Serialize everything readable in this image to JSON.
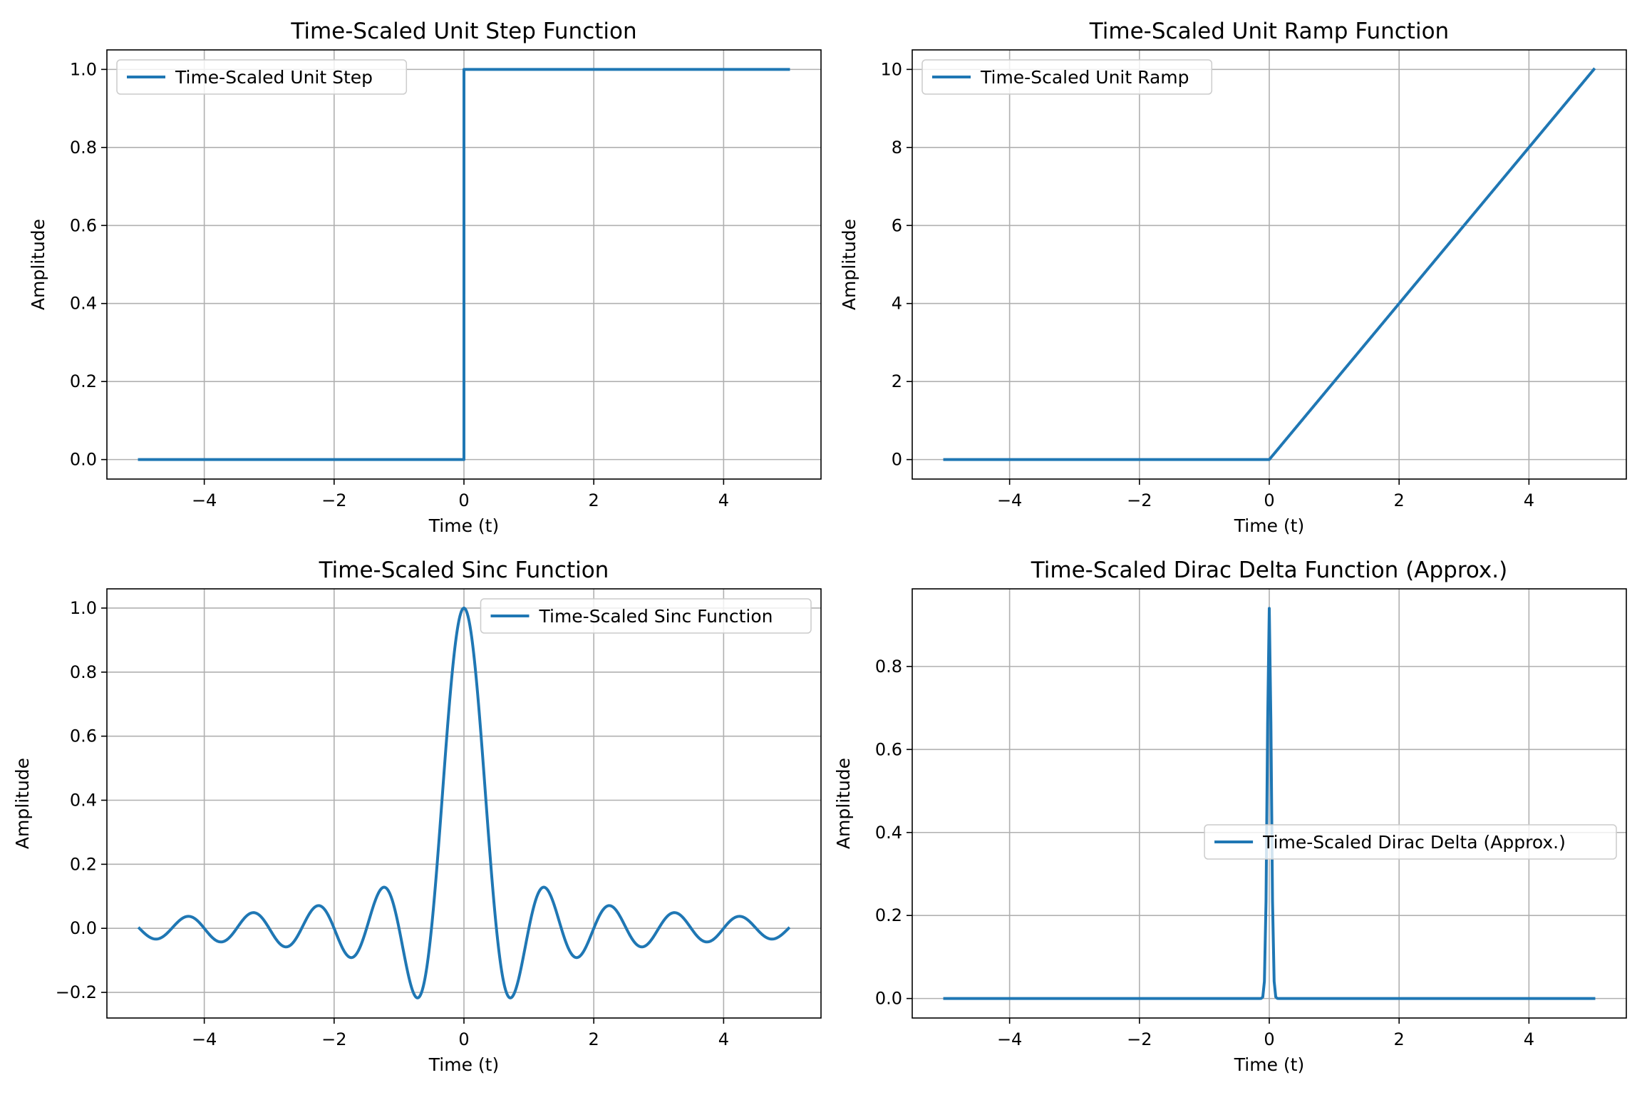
{
  "colors": {
    "series": "#1f77b4",
    "grid": "#b0b0b0"
  },
  "chart_data": [
    {
      "type": "line",
      "title": "Time-Scaled Unit Step Function",
      "xlabel": "Time (t)",
      "ylabel": "Amplitude",
      "xlim": [
        -5.5,
        5.5
      ],
      "ylim": [
        -0.05,
        1.05
      ],
      "xticks": [
        -4,
        -2,
        0,
        2,
        4
      ],
      "xtick_labels": [
        "−4",
        "−2",
        "0",
        "2",
        "4"
      ],
      "yticks": [
        0.0,
        0.2,
        0.4,
        0.6,
        0.8,
        1.0
      ],
      "ytick_labels": [
        "0.0",
        "0.2",
        "0.4",
        "0.6",
        "0.8",
        "1.0"
      ],
      "grid": true,
      "legend": "upper-left",
      "series": [
        {
          "name": "Time-Scaled Unit Step",
          "color": "#1f77b4",
          "function": "unit step",
          "x_range": [
            -5,
            5
          ]
        }
      ]
    },
    {
      "type": "line",
      "title": "Time-Scaled Unit Ramp Function",
      "xlabel": "Time (t)",
      "ylabel": "Amplitude",
      "xlim": [
        -5.5,
        5.5
      ],
      "ylim": [
        -0.5,
        10.5
      ],
      "xticks": [
        -4,
        -2,
        0,
        2,
        4
      ],
      "xtick_labels": [
        "−4",
        "−2",
        "0",
        "2",
        "4"
      ],
      "yticks": [
        0,
        2,
        4,
        6,
        8,
        10
      ],
      "ytick_labels": [
        "0",
        "2",
        "4",
        "6",
        "8",
        "10"
      ],
      "grid": true,
      "legend": "upper-left",
      "series": [
        {
          "name": "Time-Scaled Unit Ramp",
          "color": "#1f77b4",
          "function": "ramp, slope 2",
          "x_range": [
            -5,
            5
          ]
        }
      ]
    },
    {
      "type": "line",
      "title": "Time-Scaled Sinc Function",
      "xlabel": "Time (t)",
      "ylabel": "Amplitude",
      "xlim": [
        -5.5,
        5.5
      ],
      "ylim": [
        -0.28,
        1.06
      ],
      "xticks": [
        -4,
        -2,
        0,
        2,
        4
      ],
      "xtick_labels": [
        "−4",
        "−2",
        "0",
        "2",
        "4"
      ],
      "yticks": [
        -0.2,
        0.0,
        0.2,
        0.4,
        0.6,
        0.8,
        1.0
      ],
      "ytick_labels": [
        "−0.2",
        "0.0",
        "0.2",
        "0.4",
        "0.6",
        "0.8",
        "1.0"
      ],
      "grid": true,
      "legend": "upper-right",
      "series": [
        {
          "name": "Time-Scaled Sinc Function",
          "color": "#1f77b4",
          "function": "sinc(2t)",
          "x_range": [
            -5,
            5
          ]
        }
      ]
    },
    {
      "type": "line",
      "title": "Time-Scaled Dirac Delta Function (Approx.)",
      "xlabel": "Time (t)",
      "ylabel": "Amplitude",
      "xlim": [
        -5.5,
        5.5
      ],
      "ylim": [
        -0.047,
        0.987
      ],
      "xticks": [
        -4,
        -2,
        0,
        2,
        4
      ],
      "xtick_labels": [
        "−4",
        "−2",
        "0",
        "2",
        "4"
      ],
      "yticks": [
        0.0,
        0.2,
        0.4,
        0.6,
        0.8
      ],
      "ytick_labels": [
        "0.0",
        "0.2",
        "0.4",
        "0.6",
        "0.8"
      ],
      "grid": true,
      "legend": "center-right",
      "series": [
        {
          "name": "Time-Scaled Dirac Delta (Approx.)",
          "color": "#1f77b4",
          "function": "narrow gaussian pulse at t = 0, peak about 0.94",
          "x_range": [
            -5,
            5
          ]
        }
      ]
    }
  ]
}
